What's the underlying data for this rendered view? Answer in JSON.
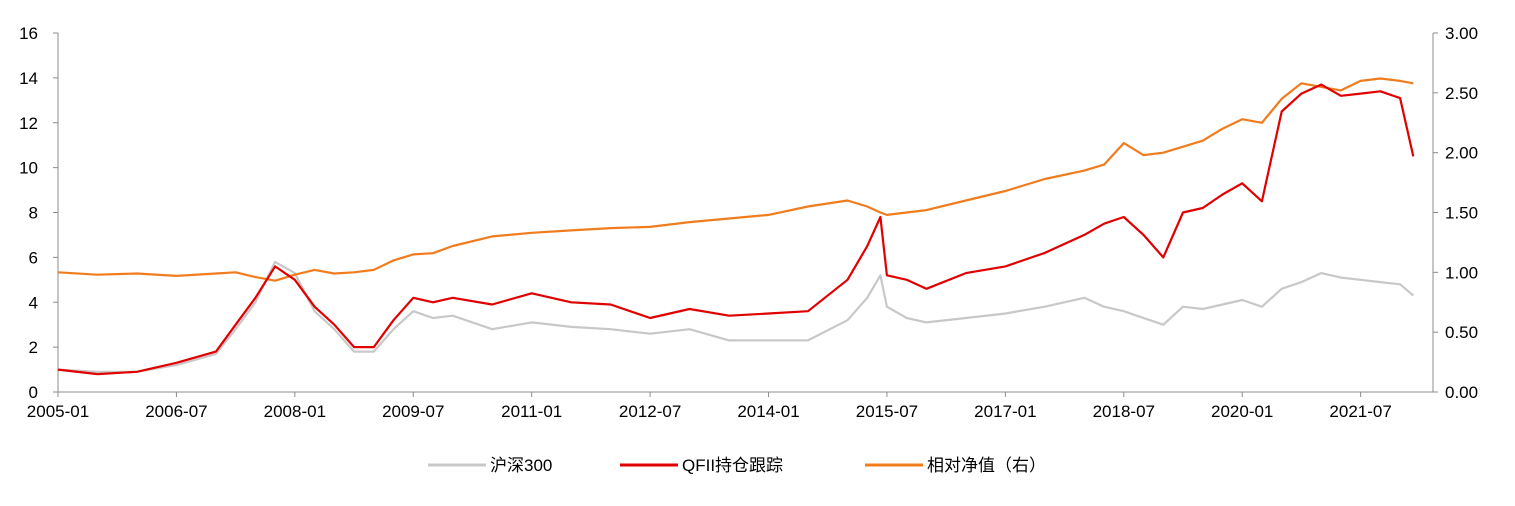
{
  "chart_data": {
    "type": "line",
    "title": "",
    "xlabel": "",
    "ylabel": "",
    "y2label": "",
    "grid": false,
    "legend_position": "bottom",
    "xlim": [
      "2005-01",
      "2022-06"
    ],
    "ylim": [
      0,
      16
    ],
    "y2lim": [
      0.0,
      3.0
    ],
    "x_ticks": [
      "2005-01",
      "2006-07",
      "2008-01",
      "2009-07",
      "2011-01",
      "2012-07",
      "2014-01",
      "2015-07",
      "2017-01",
      "2018-07",
      "2020-01",
      "2021-07"
    ],
    "y_ticks": [
      "0",
      "2",
      "4",
      "6",
      "8",
      "10",
      "12",
      "14",
      "16"
    ],
    "y2_ticks": [
      "0.00",
      "0.50",
      "1.00",
      "1.50",
      "2.00",
      "2.50",
      "3.00"
    ],
    "x": [
      "2005-01",
      "2005-07",
      "2006-01",
      "2006-07",
      "2007-01",
      "2007-04",
      "2007-07",
      "2007-10",
      "2008-01",
      "2008-04",
      "2008-07",
      "2008-10",
      "2009-01",
      "2009-04",
      "2009-07",
      "2009-10",
      "2010-01",
      "2010-07",
      "2011-01",
      "2011-07",
      "2012-01",
      "2012-07",
      "2013-01",
      "2013-07",
      "2014-01",
      "2014-07",
      "2015-01",
      "2015-04",
      "2015-06",
      "2015-07",
      "2015-10",
      "2016-01",
      "2016-07",
      "2017-01",
      "2017-07",
      "2018-01",
      "2018-04",
      "2018-07",
      "2018-10",
      "2019-01",
      "2019-04",
      "2019-07",
      "2019-10",
      "2020-01",
      "2020-04",
      "2020-07",
      "2020-10",
      "2021-01",
      "2021-04",
      "2021-07",
      "2021-10",
      "2022-01",
      "2022-03"
    ],
    "series": [
      {
        "name": "沪深300",
        "axis": "left",
        "color": "#c8c8c8",
        "values": [
          1.0,
          0.9,
          0.9,
          1.2,
          1.7,
          2.8,
          4.0,
          5.8,
          5.3,
          3.6,
          2.8,
          1.8,
          1.8,
          2.8,
          3.6,
          3.3,
          3.4,
          2.8,
          3.1,
          2.9,
          2.8,
          2.6,
          2.8,
          2.3,
          2.3,
          2.3,
          3.2,
          4.2,
          5.2,
          3.8,
          3.3,
          3.1,
          3.3,
          3.5,
          3.8,
          4.2,
          3.8,
          3.6,
          3.3,
          3.0,
          3.8,
          3.7,
          3.9,
          4.1,
          3.8,
          4.6,
          4.9,
          5.3,
          5.1,
          5.0,
          4.9,
          4.8,
          4.3
        ]
      },
      {
        "name": "QFII持仓跟踪",
        "axis": "left",
        "color": "#e00000",
        "values": [
          1.0,
          0.8,
          0.9,
          1.3,
          1.8,
          3.0,
          4.2,
          5.6,
          5.0,
          3.8,
          3.0,
          2.0,
          2.0,
          3.2,
          4.2,
          4.0,
          4.2,
          3.9,
          4.4,
          4.0,
          3.9,
          3.3,
          3.7,
          3.4,
          3.5,
          3.6,
          5.0,
          6.5,
          7.8,
          5.2,
          5.0,
          4.6,
          5.3,
          5.6,
          6.2,
          7.0,
          7.5,
          7.8,
          7.0,
          6.0,
          8.0,
          8.2,
          8.8,
          9.3,
          8.5,
          12.5,
          13.3,
          13.7,
          13.2,
          13.3,
          13.4,
          13.1,
          10.5
        ]
      },
      {
        "name": "相对净值（右）",
        "axis": "right",
        "color": "#f07c1e",
        "values": [
          1.0,
          0.98,
          0.99,
          0.97,
          0.99,
          1.0,
          0.96,
          0.93,
          0.98,
          1.02,
          0.99,
          1.0,
          1.02,
          1.1,
          1.15,
          1.16,
          1.22,
          1.3,
          1.33,
          1.35,
          1.37,
          1.38,
          1.42,
          1.45,
          1.48,
          1.55,
          1.6,
          1.55,
          1.5,
          1.48,
          1.5,
          1.52,
          1.6,
          1.68,
          1.78,
          1.85,
          1.9,
          2.08,
          1.98,
          2.0,
          2.05,
          2.1,
          2.2,
          2.28,
          2.25,
          2.45,
          2.58,
          2.55,
          2.52,
          2.6,
          2.62,
          2.6,
          2.58
        ]
      }
    ]
  },
  "legend": {
    "items": [
      {
        "label": "沪深300",
        "color": "#c8c8c8"
      },
      {
        "label": "QFII持仓跟踪",
        "color": "#e00000"
      },
      {
        "label": "相对净值（右）",
        "color": "#f07c1e"
      }
    ]
  }
}
